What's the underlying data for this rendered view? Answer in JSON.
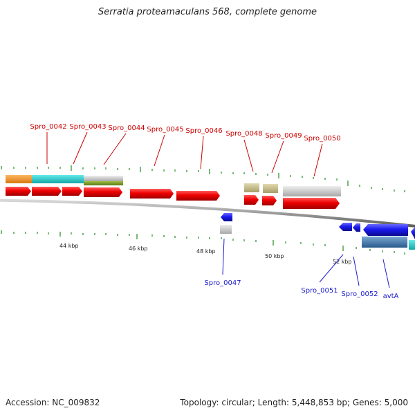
{
  "title": "Serratia proteamaculans 568, complete genome",
  "footer": {
    "accession": "Accession: NC_009832",
    "summary": "Topology: circular; Length: 5,448,853 bp; Genes: 5,000"
  },
  "colors": {
    "forward_label": "#cc0000",
    "reverse_label": "#1a1acc",
    "cds_forward": "#ee0000",
    "cds_reverse": "#1a1aee",
    "ticks": "#1e8c1e",
    "backbone": "#888888",
    "orange": "#f0901e",
    "cyan": "#22cccc",
    "gray": "#c8c8c8",
    "olive": "#7a9a2a",
    "khaki": "#c8be8c",
    "steelblue": "#4a80b4"
  },
  "scale_labels": [
    "44 kbp",
    "46 kbp",
    "48 kbp",
    "50 kbp",
    "52 kbp"
  ],
  "forward_gene_labels": [
    "Spro_0042",
    "Spro_0043",
    "Spro_0044",
    "Spro_0045",
    "Spro_0046",
    "Spro_0048",
    "Spro_0049",
    "Spro_0050"
  ],
  "reverse_gene_labels": [
    "Spro_0047",
    "Spro_0051",
    "Spro_0052",
    "avtA"
  ]
}
